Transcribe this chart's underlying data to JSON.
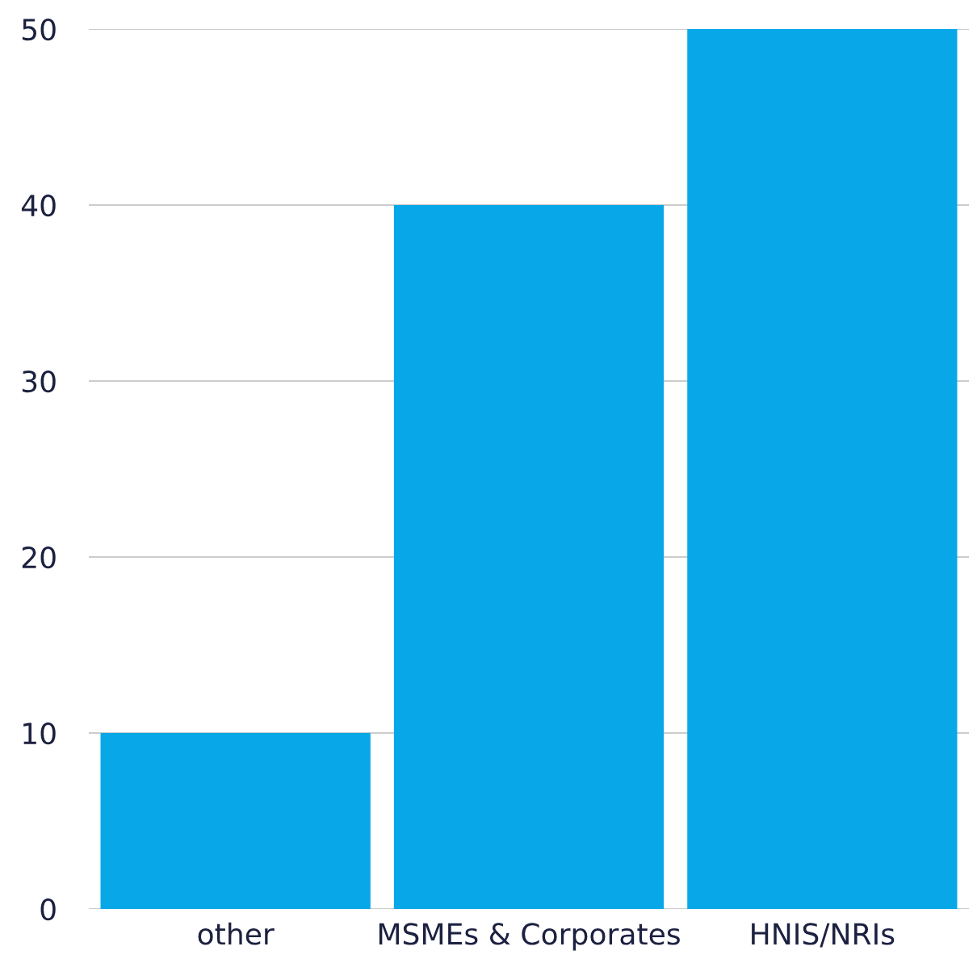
{
  "chart_data": {
    "type": "bar",
    "categories": [
      "other",
      "MSMEs & Corporates",
      "HNIS/NRIs"
    ],
    "values": [
      10,
      40,
      50
    ],
    "color": "#08a8e8",
    "ylim": [
      0,
      50
    ],
    "yticks": [
      0,
      10,
      20,
      30,
      40,
      50
    ],
    "grid": "y"
  }
}
